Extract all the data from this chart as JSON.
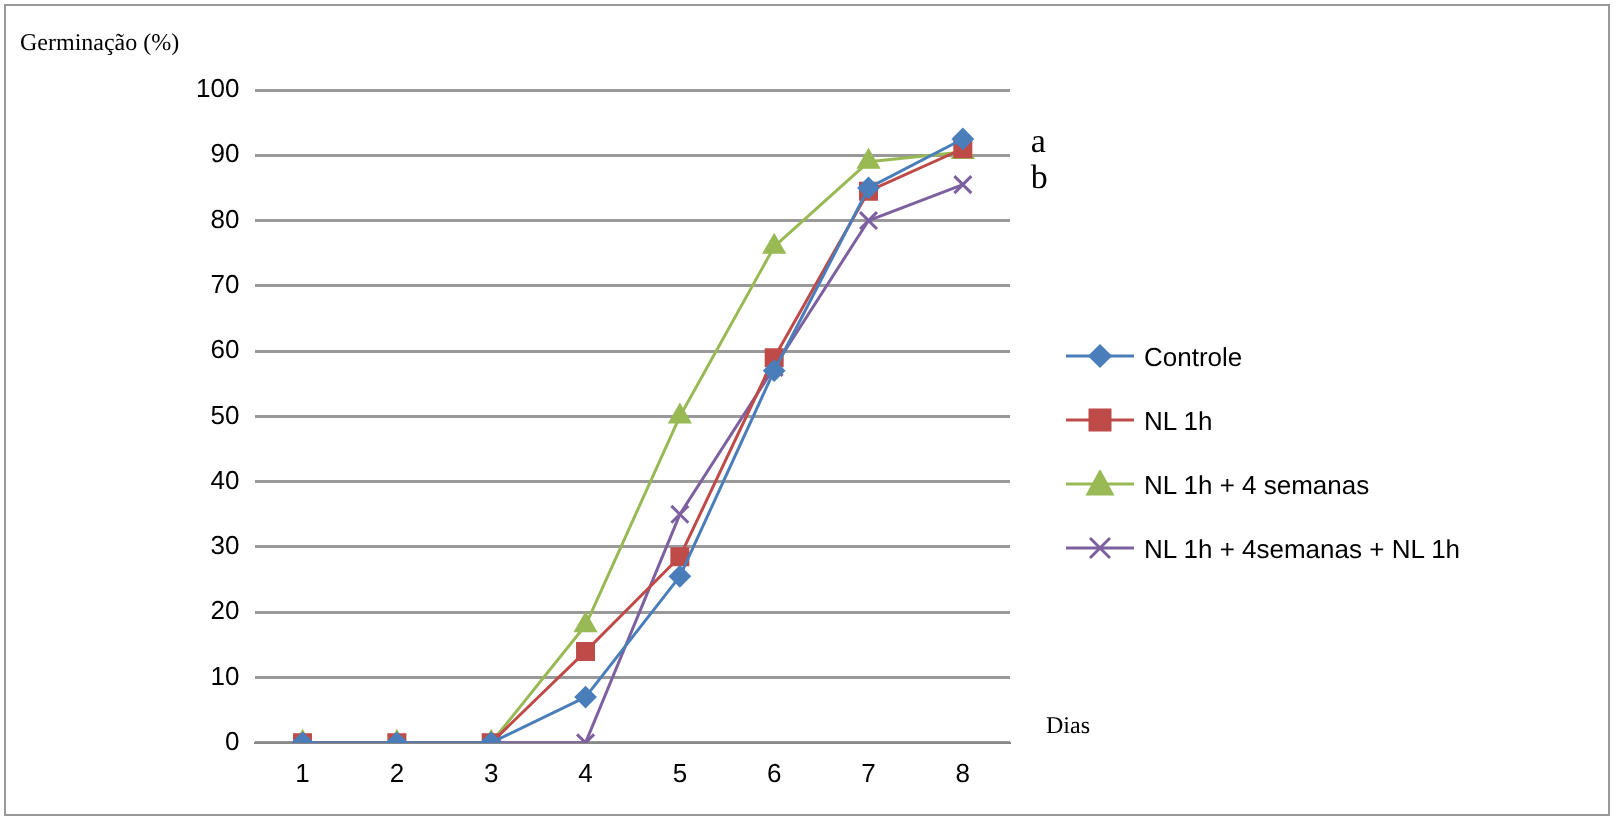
{
  "chart_data": {
    "type": "line",
    "ylabel": "Germinação (%)",
    "xlabel": "Dias",
    "categories": [
      "1",
      "2",
      "3",
      "4",
      "5",
      "6",
      "7",
      "8"
    ],
    "ylim": [
      0,
      100
    ],
    "yticks": [
      0,
      10,
      20,
      30,
      40,
      50,
      60,
      70,
      80,
      90,
      100
    ],
    "grid": "y",
    "legend": "right",
    "series": [
      {
        "name": "Controle",
        "color": "#4a7ebb",
        "marker": "diamond",
        "values": [
          0,
          0,
          0,
          7,
          25.5,
          57,
          85,
          92.5
        ]
      },
      {
        "name": "NL 1h",
        "color": "#be4b48",
        "marker": "square",
        "values": [
          0,
          0,
          0,
          14,
          28.5,
          59,
          84.5,
          91
        ]
      },
      {
        "name": "NL 1h + 4 semanas",
        "color": "#98b954",
        "marker": "triangle",
        "values": [
          0,
          0,
          0,
          18,
          50,
          76,
          89,
          90.5
        ]
      },
      {
        "name": "NL 1h + 4semanas + NL 1h",
        "color": "#7d60a0",
        "marker": "cross",
        "values": [
          0,
          0,
          0,
          0,
          35,
          57.5,
          80,
          85.5
        ]
      }
    ],
    "annotations": [
      {
        "text": "a",
        "x": "8",
        "y": 91
      },
      {
        "text": "b",
        "x": "8",
        "y": 85.5
      }
    ]
  }
}
